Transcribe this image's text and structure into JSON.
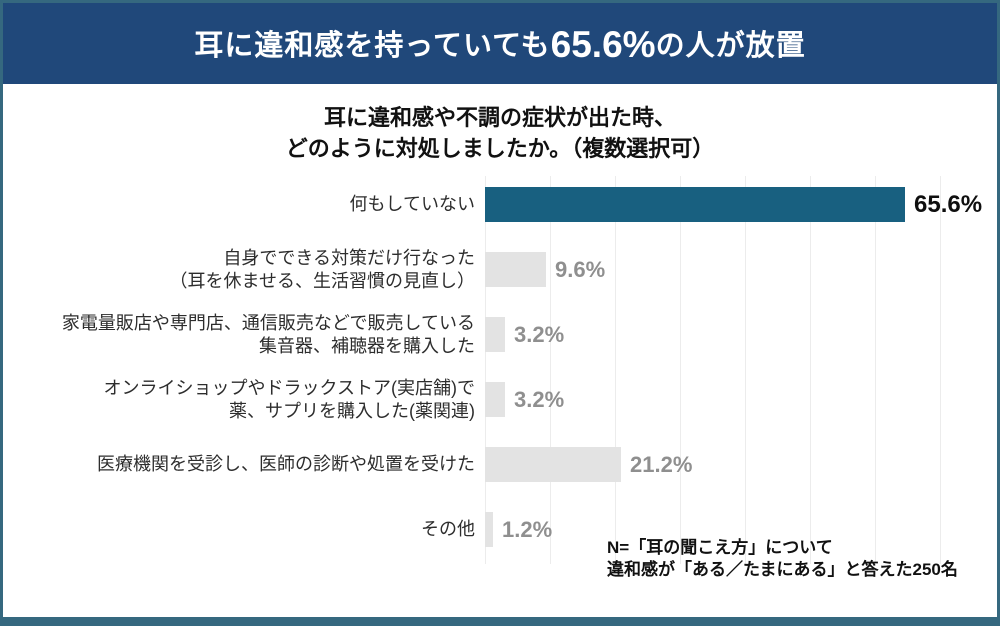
{
  "banner": {
    "prefix": "耳に違和感を持っていても",
    "highlight": "65.6%",
    "suffix": "の人が放置",
    "background_color": "#20487a",
    "text_color": "#ffffff"
  },
  "chart": {
    "title_line1": "耳に違和感や不調の症状が出た時、",
    "title_line2": "どのように対処しましたか。（複数選択可）"
  },
  "chart_data": {
    "type": "bar",
    "orientation": "horizontal",
    "title": "耳に違和感や不調の症状が出た時、どのように対処しましたか。（複数選択可）",
    "categories": [
      "何もしていない",
      "自身でできる対策だけ行なった（耳を休ませる、生活習慣の見直し）",
      "家電量販店や専門店、通信販売などで販売している集音器、補聴器を購入した",
      "オンライショップやドラックストア(実店舗)で薬、サプリを購入した(薬関連)",
      "医療機関を受診し、医師の診断や処置を受けた",
      "その他"
    ],
    "values": [
      65.6,
      9.6,
      3.2,
      3.2,
      21.2,
      1.2
    ],
    "unit": "%",
    "xlim": [
      0,
      71
    ],
    "gridlines_every": 10,
    "grid": true,
    "legend": false,
    "bar_color_highlight": "#186080",
    "bar_color_default": "#e3e3e3",
    "value_label_color_highlight": "#0f0f0f",
    "value_label_color_default": "#8f8f8f",
    "annotation": "N=「耳の聞こえ方」について違和感が「ある／たまにある」と答えた250名",
    "bars": [
      {
        "label_lines": [
          "何もしていない"
        ],
        "value": 65.6,
        "display": "65.6%",
        "highlight": true
      },
      {
        "label_lines": [
          "自身でできる対策だけ行なった",
          "（耳を休ませる、生活習慣の見直し）"
        ],
        "value": 9.6,
        "display": "9.6%",
        "highlight": false
      },
      {
        "label_lines": [
          "家電量販店や専門店、通信販売などで販売している",
          "集音器、補聴器を購入した"
        ],
        "value": 3.2,
        "display": "3.2%",
        "highlight": false
      },
      {
        "label_lines": [
          "オンライショップやドラックストア(実店舗)で",
          "薬、サプリを購入した(薬関連)"
        ],
        "value": 3.2,
        "display": "3.2%",
        "highlight": false
      },
      {
        "label_lines": [
          "医療機関を受診し、医師の診断や処置を受けた"
        ],
        "value": 21.2,
        "display": "21.2%",
        "highlight": false
      },
      {
        "label_lines": [
          "その他"
        ],
        "value": 1.2,
        "display": "1.2%",
        "highlight": false
      }
    ]
  },
  "footnote": {
    "line1": "N=「耳の聞こえ方」について",
    "line2": "違和感が「ある／たまにある」と答えた250名"
  }
}
